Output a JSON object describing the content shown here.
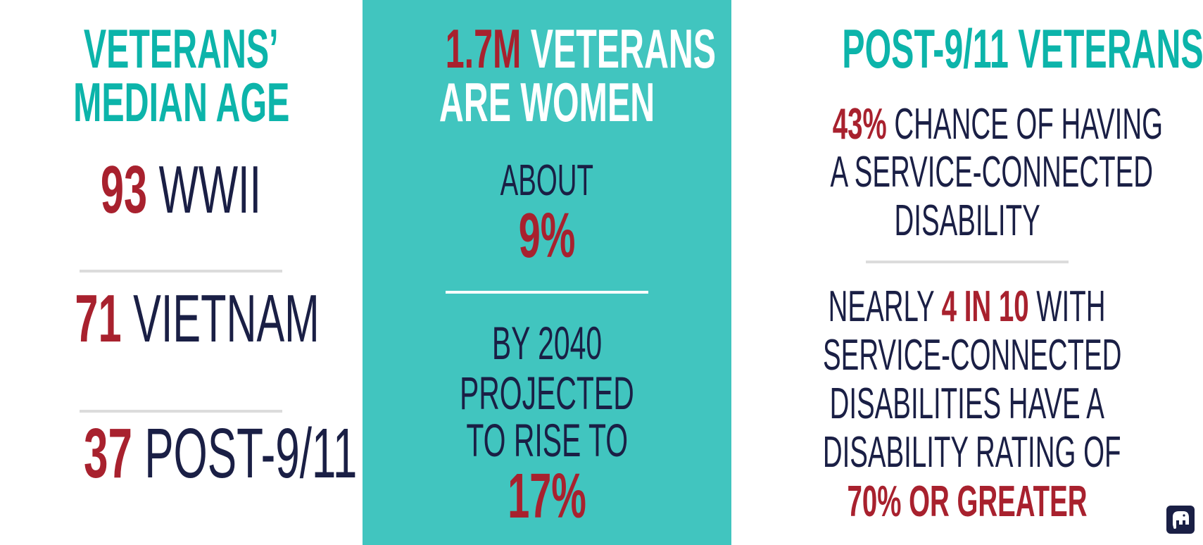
{
  "left": {
    "heading_line1": "VETERANS’",
    "heading_line2": "MEDIAN AGE",
    "rows": [
      {
        "number": "93",
        "label": "WWII"
      },
      {
        "number": "71",
        "label": "VIETNAM"
      },
      {
        "number": "37",
        "label": "POST-9/11"
      }
    ]
  },
  "middle": {
    "heading_highlight": "1.7M",
    "heading_rest_line1": "VETERANS",
    "heading_line2": "ARE WOMEN",
    "about_label": "ABOUT",
    "about_value": "9%",
    "projection_line1": "BY 2040",
    "projection_line2": "PROJECTED",
    "projection_line3": "TO RISE TO",
    "projection_value": "17%"
  },
  "right": {
    "heading": "POST-9/11 VETERANS",
    "stat1_highlight": "43%",
    "stat1_line1_rest": "CHANCE OF HAVING",
    "stat1_line2": "A SERVICE-CONNECTED",
    "stat1_line3": "DISABILITY",
    "stat2_line1_pre": "NEARLY",
    "stat2_line1_highlight": "4 IN 10",
    "stat2_line1_post": "WITH",
    "stat2_line2": "SERVICE-CONNECTED",
    "stat2_line3": "DISABILITIES HAVE A",
    "stat2_line4": "DISABILITY RATING OF",
    "stat2_highlight": "70% OR GREATER"
  },
  "colors": {
    "teal": "#0cb4aa",
    "teal_panel": "#41c5bf",
    "red": "#a8212e",
    "navy": "#1a1f45",
    "divider": "#dcdcdc"
  },
  "icons": {
    "logo": "elephant-icon"
  }
}
